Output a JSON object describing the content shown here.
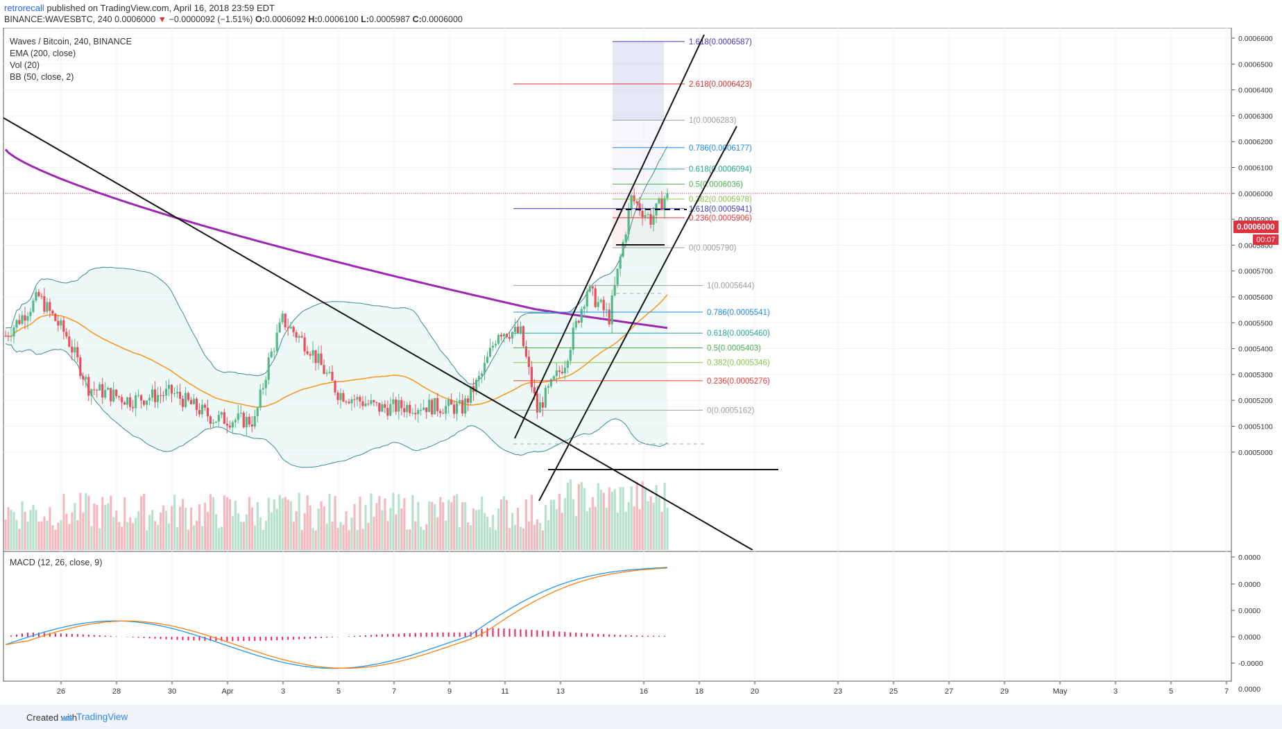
{
  "header": {
    "author": "retrorecall",
    "published": "published on TradingView.com, April 16, 2018 23:59 EDT",
    "symbol": "BINANCE:WAVESBTC, 240",
    "last": "0.0006000",
    "change": "−0.0000092 (−1.51%)",
    "o_label": "O:",
    "o": "0.0006092",
    "h_label": "H:",
    "h": "0.0006100",
    "l_label": "L:",
    "l": "0.0005987",
    "c_label": "C:",
    "c": "0.0006000"
  },
  "legend": {
    "title": "Waves / Bitcoin, 240, BINANCE",
    "ema": "EMA (200, close)",
    "vol": "Vol (20)",
    "bb": "BB (50, close, 2)",
    "macd": "MACD (12, 26, close, 9)"
  },
  "price_badge": {
    "value": "0.0006000",
    "countdown": "00:07"
  },
  "footer": {
    "created": "Created with",
    "brand": "TradingView"
  },
  "colors": {
    "up": "#53b987",
    "down": "#eb4d5c",
    "ema": "#9c27b0",
    "bb_mid": "#f59a23",
    "bb_band": "#3a8b8e",
    "macd": "#2196f3",
    "signal": "#ff7f0e",
    "hist": "#e91e63"
  },
  "chart_data": {
    "type": "candlestick",
    "ylim": [
      0.000499,
      0.000666
    ],
    "y_ticks": [
      "0.0006600",
      "0.0006500",
      "0.0006400",
      "0.0006300",
      "0.0006200",
      "0.0006100",
      "0.0006000",
      "0.0005900",
      "0.0005800",
      "0.0005700",
      "0.0005600",
      "0.0005500",
      "0.0005400",
      "0.0005300",
      "0.0005200",
      "0.0005100",
      "0.0005000"
    ],
    "macd_ticks": [
      "0.0000",
      "0.0000",
      "0.0000",
      "0.0000",
      "-0.0000",
      "0.0000"
    ],
    "x_ticks": [
      "26",
      "28",
      "30",
      "Apr",
      "3",
      "5",
      "7",
      "9",
      "11",
      "13",
      "16",
      "18",
      "20",
      "23",
      "25",
      "27",
      "29",
      "May",
      "3",
      "5",
      "7"
    ],
    "current_price": 0.0006,
    "ohlc_key_points": [
      {
        "date": "Mar 25",
        "close": 0.000545
      },
      {
        "date": "Mar 27",
        "close": 0.000525
      },
      {
        "date": "Apr 1",
        "close": 0.000511
      },
      {
        "date": "Apr 2",
        "close": 0.000551
      },
      {
        "date": "Apr 9",
        "close": 0.000517
      },
      {
        "date": "Apr 11",
        "close": 0.000547
      },
      {
        "date": "Apr 12",
        "close": 0.000516
      },
      {
        "date": "Apr 14",
        "close": 0.000598
      },
      {
        "date": "Apr 16",
        "close": 0.0006
      }
    ],
    "fib_upper": [
      {
        "ratio": "1.618",
        "label": "1.618(0.0006587)",
        "value": 0.0006587
      },
      {
        "ratio": "2.618",
        "label": "2.618(0.0006423)",
        "value": 0.0006423
      },
      {
        "ratio": "1",
        "label": "1(0.0006283)",
        "value": 0.0006283
      },
      {
        "ratio": "0.786",
        "label": "0.786(0.0006177)",
        "value": 0.0006177
      },
      {
        "ratio": "0.618",
        "label": "0.618(0.0006094)",
        "value": 0.0006094
      },
      {
        "ratio": "0.5",
        "label": "0.5(0.0006036)",
        "value": 0.0006036
      },
      {
        "ratio": "0.382",
        "label": "0.382(0.0005978)",
        "value": 0.0005978
      },
      {
        "ratio": "1.618",
        "label": "1.618(0.0005941)",
        "value": 0.0005941
      },
      {
        "ratio": "0.236",
        "label": "0.236(0.0005906)",
        "value": 0.0005906
      },
      {
        "ratio": "0",
        "label": "0(0.0005790)",
        "value": 0.000579
      }
    ],
    "fib_lower": [
      {
        "ratio": "1",
        "label": "1(0.0005644)",
        "value": 0.0005644
      },
      {
        "ratio": "0.786",
        "label": "0.786(0.0005541)",
        "value": 0.0005541
      },
      {
        "ratio": "0.618",
        "label": "0.618(0.0005460)",
        "value": 0.000546
      },
      {
        "ratio": "0.5",
        "label": "0.5(0.0005403)",
        "value": 0.0005403
      },
      {
        "ratio": "0.382",
        "label": "0.382(0.0005346)",
        "value": 0.0005346
      },
      {
        "ratio": "0.236",
        "label": "0.236(0.0005276)",
        "value": 0.0005276
      },
      {
        "ratio": "0",
        "label": "0(0.0005162)",
        "value": 0.0005162
      }
    ],
    "grid": true
  }
}
